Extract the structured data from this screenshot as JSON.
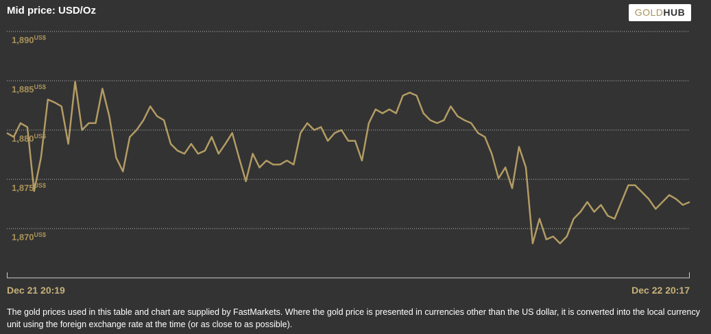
{
  "chart_data": {
    "type": "line",
    "title": "Mid price: USD/Oz",
    "logo": [
      "GOLD",
      "HUB"
    ],
    "y_unit": "US$",
    "ylim": [
      1865,
      1890
    ],
    "yticks": [
      {
        "value": 1870,
        "label": "1,870"
      },
      {
        "value": 1875,
        "label": "1,875"
      },
      {
        "value": 1880,
        "label": "1,880"
      },
      {
        "value": 1885,
        "label": "1,885"
      },
      {
        "value": 1890,
        "label": "1,890"
      }
    ],
    "grid": true,
    "color": "#b39c64",
    "categories": [
      "Dec 21 20:19",
      null,
      null,
      null,
      null,
      null,
      null,
      null,
      null,
      null,
      null,
      null,
      null,
      null,
      null,
      null,
      null,
      null,
      null,
      null,
      null,
      null,
      null,
      null,
      null,
      null,
      null,
      null,
      null,
      null,
      null,
      null,
      null,
      null,
      null,
      null,
      null,
      null,
      null,
      null,
      null,
      null,
      null,
      null,
      null,
      null,
      null,
      null,
      null,
      null,
      null,
      null,
      null,
      null,
      null,
      null,
      null,
      null,
      null,
      null,
      null,
      null,
      null,
      null,
      null,
      null,
      null,
      null,
      null,
      null,
      null,
      null,
      null,
      null,
      null,
      null,
      null,
      null,
      null,
      null,
      null,
      null,
      null,
      null,
      null,
      null,
      null,
      null,
      null,
      null,
      null,
      null,
      null,
      null,
      null,
      null,
      null,
      null,
      null,
      null,
      "Dec 22 20:17"
    ],
    "values": [
      1879.7,
      1879.3,
      1880.7,
      1880.3,
      1873.8,
      1877.2,
      1883.1,
      1882.8,
      1882.4,
      1878.6,
      1884.9,
      1880,
      1880.7,
      1880.7,
      1884.2,
      1881.4,
      1877.2,
      1875.8,
      1879.3,
      1880,
      1881,
      1882.4,
      1881.4,
      1881,
      1878.6,
      1877.9,
      1877.6,
      1878.6,
      1877.6,
      1877.9,
      1879.3,
      1877.6,
      1878.6,
      1879.7,
      1877.2,
      1874.8,
      1877.6,
      1876.2,
      1876.9,
      1876.5,
      1876.5,
      1876.9,
      1876.5,
      1879.7,
      1880.7,
      1880,
      1880.3,
      1878.9,
      1879.7,
      1880,
      1878.9,
      1878.9,
      1876.9,
      1880.7,
      1882.1,
      1881.7,
      1882.1,
      1881.7,
      1883.5,
      1883.8,
      1883.5,
      1881.7,
      1881,
      1880.7,
      1881,
      1882.4,
      1881.4,
      1881,
      1880.7,
      1879.7,
      1879.3,
      1877.6,
      1875.1,
      1876.2,
      1874.1,
      1878.3,
      1876.2,
      1868.5,
      1871,
      1868.9,
      1869.2,
      1868.5,
      1869.2,
      1871,
      1871.7,
      1872.7,
      1871.7,
      1872.4,
      1871.3,
      1871,
      1872.7,
      1874.4,
      1874.4,
      1873.7,
      1873,
      1872,
      1872.7,
      1873.4,
      1873,
      1872.4,
      1872.7
    ],
    "footnote": "The gold prices used in this table and chart are supplied by FastMarkets. Where the gold price is presented in currencies other than the US dollar, it is converted into the local currency unit using the foreign exchange rate at the time (or as close to as possible)."
  }
}
